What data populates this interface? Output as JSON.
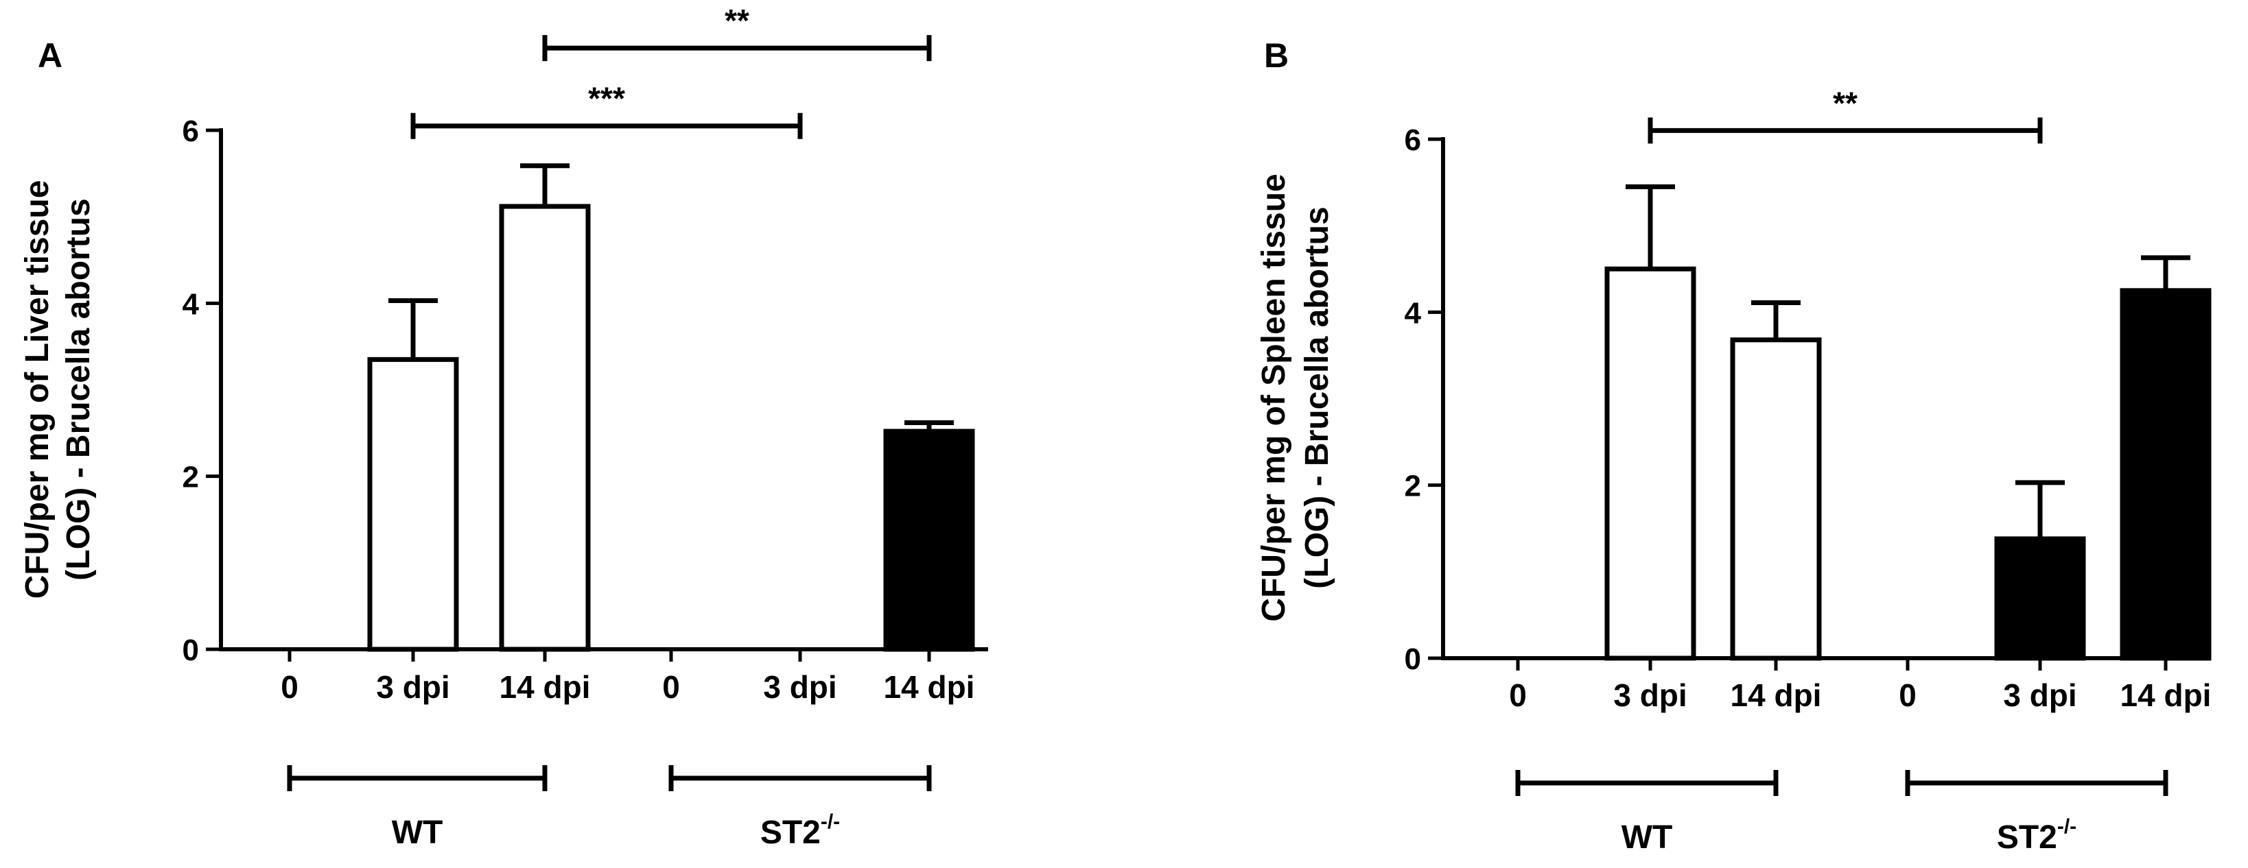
{
  "chart_data": [
    {
      "panel_label": "A",
      "type": "bar",
      "categories": [
        "0",
        "3 dpi",
        "14 dpi",
        "0",
        "3 dpi",
        "14 dpi"
      ],
      "values": [
        0,
        3.35,
        5.12,
        0,
        0,
        2.52
      ],
      "errors": [
        0,
        0.68,
        0.47,
        0,
        0,
        0.1
      ],
      "fills": [
        "#ffffff",
        "#ffffff",
        "#ffffff",
        "#000000",
        "#000000",
        "#000000"
      ],
      "ylabel_line1": "CFU/per mg of Liver tissue",
      "ylabel_line2": "(LOG) - Brucella abortus",
      "ylim": [
        0,
        6
      ],
      "yticks": [
        "0",
        "2",
        "4",
        "6"
      ],
      "groups": [
        {
          "label": "WT",
          "from": 0,
          "to": 2,
          "superscript": ""
        },
        {
          "label": "ST2",
          "from": 3,
          "to": 5,
          "superscript": "-/-"
        }
      ],
      "significance": [
        {
          "from": 1,
          "to": 4,
          "label": "***",
          "level": 6.05
        },
        {
          "from": 2,
          "to": 5,
          "label": "**",
          "level": 6.95
        }
      ]
    },
    {
      "panel_label": "B",
      "type": "bar",
      "categories": [
        "0",
        "3 dpi",
        "14 dpi",
        "0",
        "3 dpi",
        "14 dpi"
      ],
      "values": [
        0,
        4.5,
        3.68,
        0,
        1.38,
        4.25
      ],
      "errors": [
        0,
        0.95,
        0.43,
        0,
        0.65,
        0.38
      ],
      "fills": [
        "#ffffff",
        "#ffffff",
        "#ffffff",
        "#000000",
        "#000000",
        "#000000"
      ],
      "ylabel_line1": "CFU/per mg of Spleen tissue",
      "ylabel_line2": "(LOG) - Brucella abortus",
      "ylim": [
        0,
        6
      ],
      "yticks": [
        "0",
        "2",
        "4",
        "6"
      ],
      "groups": [
        {
          "label": "WT",
          "from": 0,
          "to": 2,
          "superscript": ""
        },
        {
          "label": "ST2",
          "from": 3,
          "to": 5,
          "superscript": "-/-"
        }
      ],
      "significance": [
        {
          "from": 1,
          "to": 4,
          "label": "**",
          "level": 6.1
        }
      ]
    }
  ]
}
